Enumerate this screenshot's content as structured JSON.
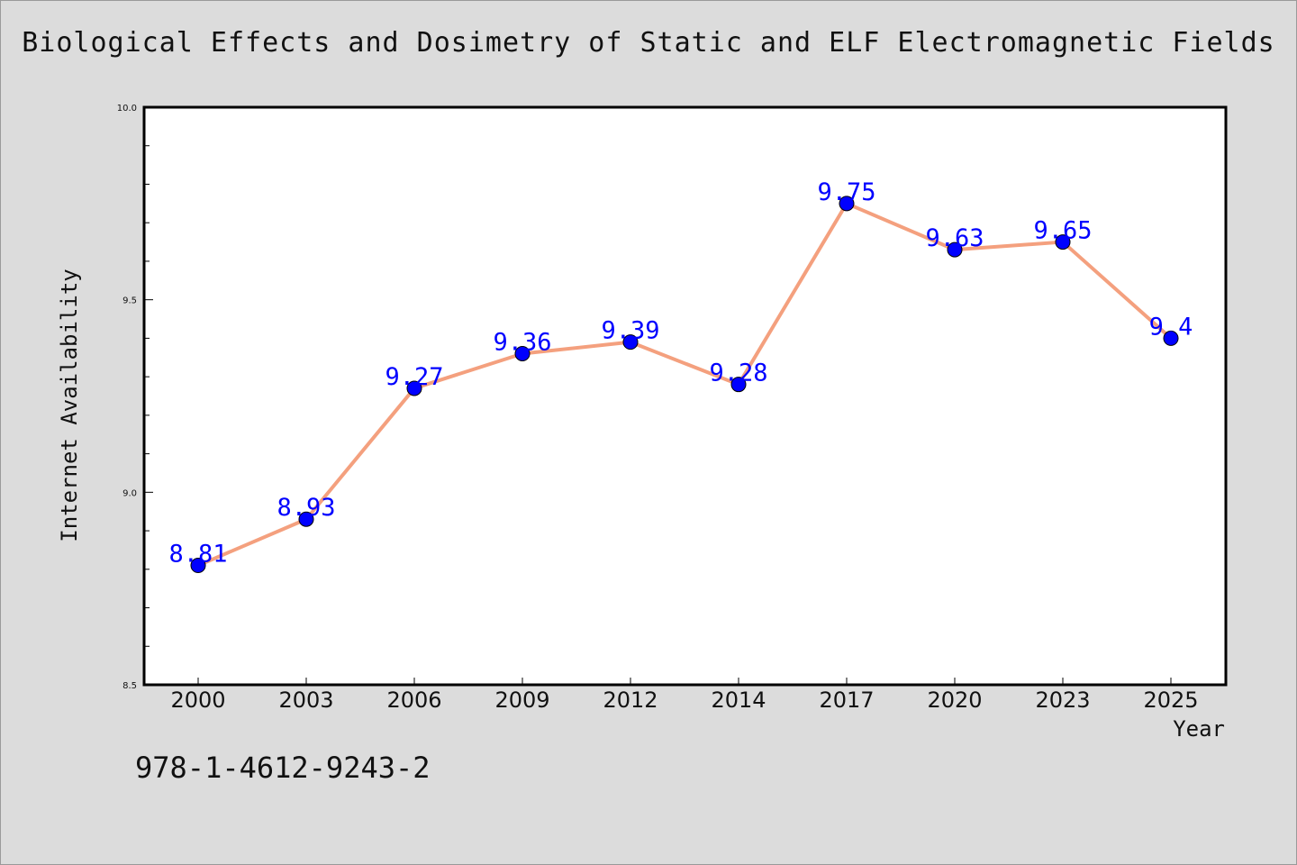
{
  "chart_data": {
    "type": "line",
    "title": "Biological Effects and Dosimetry of Static and ELF Electromagnetic Fields",
    "xlabel": "Year",
    "ylabel": "Internet Availability",
    "categories": [
      "2000",
      "2003",
      "2006",
      "2009",
      "2012",
      "2014",
      "2017",
      "2020",
      "2023",
      "2025"
    ],
    "values": [
      8.81,
      8.93,
      9.27,
      9.36,
      9.39,
      9.28,
      9.75,
      9.63,
      9.65,
      9.4
    ],
    "data_labels": [
      "8.81",
      "8.93",
      "9.27",
      "9.36",
      "9.39",
      "9.28",
      "9.75",
      "9.63",
      "9.65",
      "9.4"
    ],
    "ylim": [
      8.5,
      10.0
    ],
    "yticks": [
      "8.5",
      "9.0",
      "9.5",
      "10.0"
    ],
    "line_color": "#f4a07e",
    "marker_color": "#0000ff",
    "label_color": "#0000ff",
    "grid": false,
    "legend": "none"
  },
  "footer": {
    "isbn": "978-1-4612-9243-2"
  }
}
